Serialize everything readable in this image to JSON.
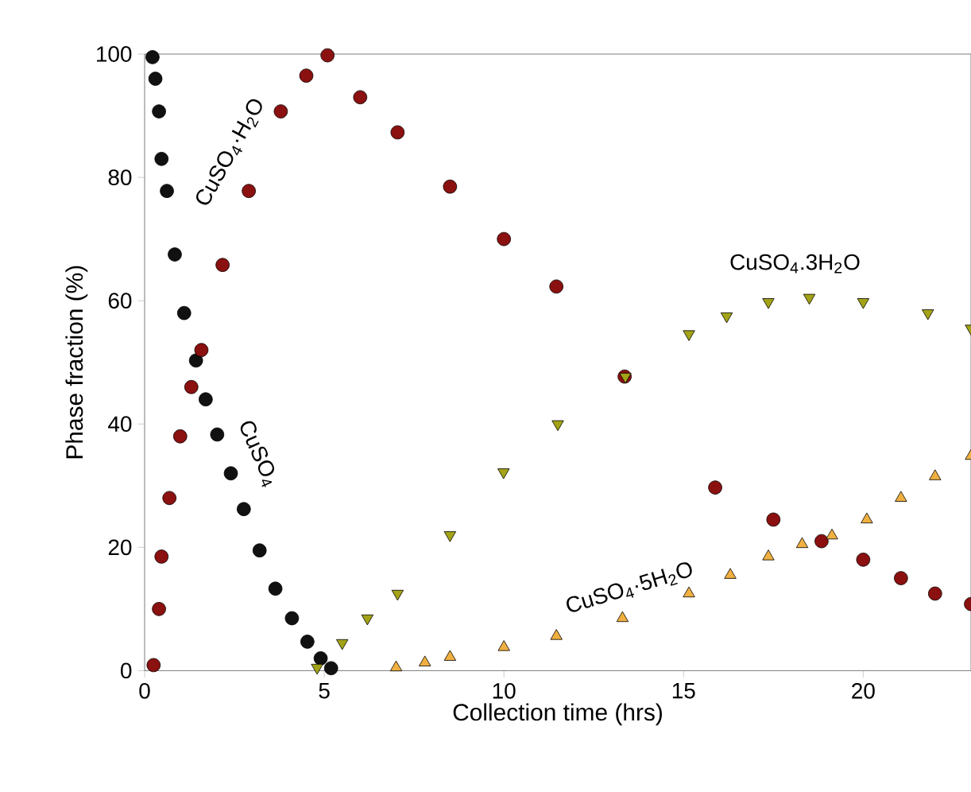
{
  "chart_data": {
    "type": "scatter",
    "xlabel": "Collection time (hrs)",
    "ylabel": "Phase fraction (%)",
    "xlim": [
      0,
      23
    ],
    "ylim": [
      0,
      100
    ],
    "xticks": [
      0,
      5,
      10,
      15,
      20
    ],
    "yticks": [
      0,
      20,
      40,
      60,
      80,
      100
    ],
    "series": [
      {
        "name": "CuSO$_{4}$",
        "color": "#111111",
        "marker": "circle",
        "x": [
          0.22,
          0.3,
          0.4,
          0.47,
          0.62,
          0.84,
          1.1,
          1.43,
          1.7,
          2.02,
          2.4,
          2.76,
          3.2,
          3.64,
          4.1,
          4.53,
          4.9,
          5.19
        ],
        "values": [
          99.5,
          96,
          90.7,
          83,
          77.8,
          67.5,
          58,
          50.3,
          44,
          38.3,
          32,
          26.2,
          19.5,
          13.3,
          8.5,
          4.7,
          2,
          0.4
        ]
      },
      {
        "name": "CuSO$_{4}$·H$_{2}$O",
        "color": "#8b1010",
        "marker": "circle",
        "x": [
          0.25,
          0.4,
          0.47,
          0.69,
          0.99,
          1.3,
          1.58,
          2.17,
          2.9,
          3.79,
          4.5,
          5.09,
          6.0,
          7.04,
          8.5,
          10.0,
          11.46,
          13.36,
          15.88,
          17.5,
          18.84,
          20.0,
          21.05,
          22.0,
          23.0
        ],
        "values": [
          0.9,
          10,
          18.5,
          28,
          38,
          46,
          52,
          65.8,
          77.8,
          90.7,
          96.5,
          99.8,
          93,
          87.3,
          78.5,
          70,
          62.3,
          47.7,
          29.7,
          24.5,
          21,
          18,
          15,
          12.5,
          10.8
        ]
      },
      {
        "name": "CuSO$_{4}$.3H$_{2}$O",
        "color": "#a3a317",
        "marker": "triangle-down",
        "x": [
          4.8,
          5.5,
          6.2,
          7.04,
          8.5,
          9.99,
          11.5,
          13.38,
          15.15,
          16.2,
          17.36,
          18.5,
          20.0,
          21.8,
          23.0
        ],
        "values": [
          0.5,
          4.5,
          8.5,
          12.5,
          22,
          32.2,
          40,
          47.7,
          54.6,
          57.5,
          59.8,
          60.5,
          59.8,
          58,
          55.5
        ]
      },
      {
        "name": "CuSO$_{4}$·5H$_{2}$O",
        "color": "#f0b040",
        "marker": "triangle",
        "x": [
          7.0,
          7.8,
          8.5,
          10.0,
          11.46,
          13.3,
          15.15,
          16.3,
          17.36,
          18.3,
          19.13,
          20.1,
          21.05,
          22.0,
          23.0
        ],
        "values": [
          0.5,
          1.3,
          2.2,
          3.8,
          5.6,
          8.5,
          12.5,
          15.5,
          18.5,
          20.5,
          21.9,
          24.5,
          28,
          31.5,
          34.8
        ]
      }
    ]
  }
}
